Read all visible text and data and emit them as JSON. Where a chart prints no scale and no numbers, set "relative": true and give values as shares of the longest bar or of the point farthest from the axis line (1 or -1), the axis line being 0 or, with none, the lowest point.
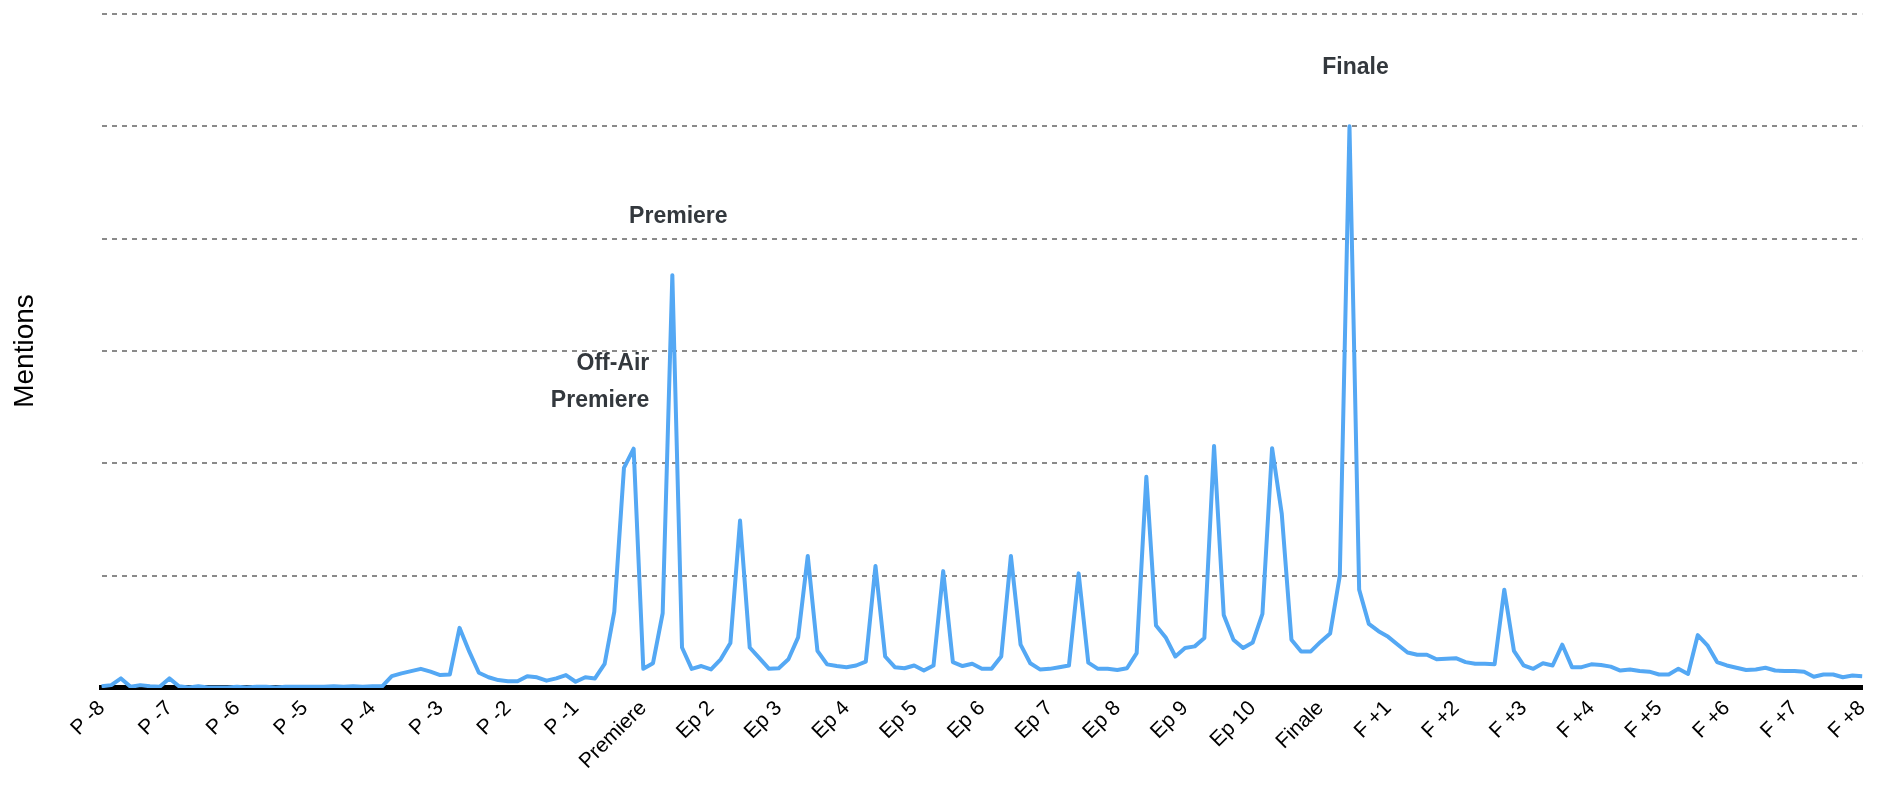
{
  "chart_data": {
    "type": "line",
    "relative": true,
    "ylabel": "Mentions",
    "grid": "y",
    "categories": [
      "P -8",
      null,
      null,
      null,
      null,
      null,
      null,
      "P -7",
      null,
      null,
      null,
      null,
      null,
      null,
      "P -6",
      null,
      null,
      null,
      null,
      null,
      null,
      "P -5",
      null,
      null,
      null,
      null,
      null,
      null,
      "P -4",
      null,
      null,
      null,
      null,
      null,
      null,
      "P -3",
      null,
      null,
      null,
      null,
      null,
      null,
      "P -2",
      null,
      null,
      null,
      null,
      null,
      null,
      "P -1",
      null,
      null,
      null,
      null,
      null,
      null,
      "Premiere",
      null,
      null,
      null,
      null,
      null,
      null,
      "Ep 2",
      null,
      null,
      null,
      null,
      null,
      null,
      "Ep 3",
      null,
      null,
      null,
      null,
      null,
      null,
      "Ep 4",
      null,
      null,
      null,
      null,
      null,
      null,
      "Ep 5",
      null,
      null,
      null,
      null,
      null,
      null,
      "Ep 6",
      null,
      null,
      null,
      null,
      null,
      null,
      "Ep 7",
      null,
      null,
      null,
      null,
      null,
      null,
      "Ep 8",
      null,
      null,
      null,
      null,
      null,
      null,
      "Ep 9",
      null,
      null,
      null,
      null,
      null,
      null,
      "Ep 10",
      null,
      null,
      null,
      null,
      null,
      null,
      "Finale",
      null,
      null,
      null,
      null,
      null,
      null,
      "F +1",
      null,
      null,
      null,
      null,
      null,
      null,
      "F +2",
      null,
      null,
      null,
      null,
      null,
      null,
      "F +3",
      null,
      null,
      null,
      null,
      null,
      null,
      "F +4",
      null,
      null,
      null,
      null,
      null,
      null,
      "F +5",
      null,
      null,
      null,
      null,
      null,
      null,
      "F +6",
      null,
      null,
      null,
      null,
      null,
      null,
      "F +7",
      null,
      null,
      null,
      null,
      null,
      null,
      "F +8"
    ],
    "series": [
      {
        "color": "#54a8f4",
        "values": [
          0.003,
          0.005,
          0.017,
          0.002,
          0.005,
          0.003,
          0.002,
          0.017,
          0.003,
          0.001,
          0.003,
          0.001,
          0.001,
          0.001,
          0.002,
          0.001,
          0.002,
          0.002,
          0.001,
          0.002,
          0.002,
          0.002,
          0.002,
          0.002,
          0.003,
          0.002,
          0.003,
          0.002,
          0.003,
          0.003,
          0.021,
          0.026,
          0.03,
          0.034,
          0.029,
          0.023,
          0.024,
          0.107,
          0.065,
          0.027,
          0.019,
          0.014,
          0.012,
          0.012,
          0.021,
          0.019,
          0.013,
          0.017,
          0.023,
          0.011,
          0.019,
          0.017,
          0.043,
          0.136,
          0.392,
          0.426,
          0.034,
          0.044,
          0.133,
          0.735,
          0.072,
          0.034,
          0.039,
          0.033,
          0.051,
          0.08,
          0.298,
          0.072,
          0.053,
          0.034,
          0.035,
          0.051,
          0.09,
          0.235,
          0.066,
          0.042,
          0.039,
          0.037,
          0.04,
          0.047,
          0.217,
          0.056,
          0.037,
          0.035,
          0.04,
          0.031,
          0.04,
          0.208,
          0.046,
          0.039,
          0.043,
          0.034,
          0.034,
          0.056,
          0.235,
          0.077,
          0.044,
          0.033,
          0.034,
          0.037,
          0.04,
          0.204,
          0.045,
          0.034,
          0.034,
          0.032,
          0.035,
          0.062,
          0.376,
          0.111,
          0.09,
          0.056,
          0.071,
          0.074,
          0.089,
          0.431,
          0.13,
          0.086,
          0.071,
          0.081,
          0.132,
          0.427,
          0.31,
          0.086,
          0.065,
          0.065,
          0.082,
          0.097,
          0.2,
          1,
          0.175,
          0.114,
          0.101,
          0.091,
          0.077,
          0.063,
          0.059,
          0.059,
          0.051,
          0.052,
          0.053,
          0.046,
          0.043,
          0.043,
          0.042,
          0.175,
          0.066,
          0.04,
          0.034,
          0.044,
          0.04,
          0.077,
          0.037,
          0.037,
          0.042,
          0.041,
          0.038,
          0.031,
          0.033,
          0.03,
          0.029,
          0.024,
          0.024,
          0.034,
          0.025,
          0.094,
          0.076,
          0.046,
          0.04,
          0.036,
          0.032,
          0.033,
          0.036,
          0.031,
          0.03,
          0.03,
          0.029,
          0.02,
          0.024,
          0.024,
          0.019,
          0.022,
          0.021
        ]
      }
    ],
    "annotations": [
      "Off-Air Premiere",
      {
        "text": "Premiere",
        "y": 0.735
      },
      {
        "text": "Finale",
        "y": 1
      }
    ]
  }
}
